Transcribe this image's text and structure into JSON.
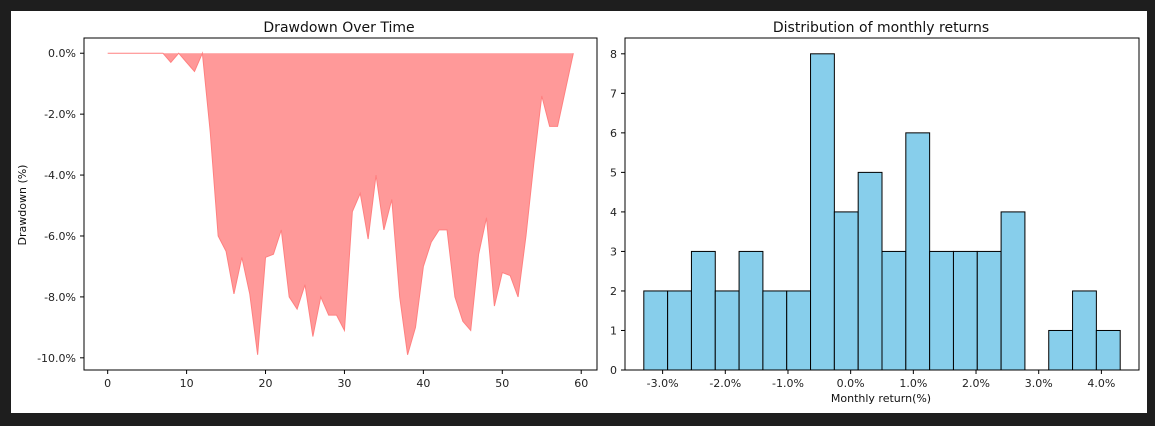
{
  "chart_data": [
    {
      "type": "area",
      "title": "Drawdown Over Time",
      "xlabel": "",
      "ylabel": "Drawdown (%)",
      "xlim": [
        -3,
        62
      ],
      "ylim": [
        -10.4,
        0.5
      ],
      "xticks": [
        0,
        10,
        20,
        30,
        40,
        50,
        60
      ],
      "xtick_labels": [
        "0",
        "10",
        "20",
        "30",
        "40",
        "50",
        "60"
      ],
      "yticks": [
        0,
        -2,
        -4,
        -6,
        -8,
        -10
      ],
      "ytick_labels": [
        "0.0%",
        "-2.0%",
        "-4.0%",
        "-6.0%",
        "-8.0%",
        "-10.0%"
      ],
      "fill_color": "#ff9999",
      "edge_color": "#ff8080",
      "x": [
        0,
        1,
        2,
        3,
        4,
        5,
        6,
        7,
        8,
        9,
        10,
        11,
        12,
        13,
        14,
        15,
        16,
        17,
        18,
        19,
        20,
        21,
        22,
        23,
        24,
        25,
        26,
        27,
        28,
        29,
        30,
        31,
        32,
        33,
        34,
        35,
        36,
        37,
        38,
        39,
        40,
        41,
        42,
        43,
        44,
        45,
        46,
        47,
        48,
        49,
        50,
        51,
        52,
        53,
        54,
        55,
        56,
        57,
        58,
        59
      ],
      "y": [
        0,
        0,
        0,
        0,
        0,
        0,
        0,
        0,
        -0.3,
        0,
        -0.3,
        -0.6,
        0,
        -2.6,
        -6.0,
        -6.5,
        -7.9,
        -6.7,
        -7.9,
        -9.9,
        -6.7,
        -6.6,
        -5.8,
        -8.0,
        -8.4,
        -7.6,
        -9.3,
        -8.0,
        -8.6,
        -8.6,
        -9.1,
        -5.2,
        -4.6,
        -6.1,
        -4.0,
        -5.8,
        -4.8,
        -8.0,
        -9.9,
        -9.0,
        -7.0,
        -6.2,
        -5.8,
        -5.8,
        -8.0,
        -8.8,
        -9.1,
        -6.6,
        -5.4,
        -8.3,
        -7.2,
        -7.3,
        -8.0,
        -6.0,
        -3.6,
        -1.4,
        -2.4,
        -2.4,
        -1.2,
        0
      ]
    },
    {
      "type": "bar",
      "title": "Distribution of monthly returns",
      "xlabel": "Monthly return(%)",
      "ylabel": "",
      "xlim": [
        -3.6,
        4.6
      ],
      "ylim": [
        0,
        8.4
      ],
      "xticks": [
        -3,
        -2,
        -1,
        0,
        1,
        2,
        3,
        4
      ],
      "xtick_labels": [
        "-3.0%",
        "-2.0%",
        "-1.0%",
        "0.0%",
        "1.0%",
        "2.0%",
        "3.0%",
        "4.0%"
      ],
      "yticks": [
        0,
        1,
        2,
        3,
        4,
        5,
        6,
        7,
        8
      ],
      "ytick_labels": [
        "0",
        "1",
        "2",
        "3",
        "4",
        "5",
        "6",
        "7",
        "8"
      ],
      "bar_color": "#87ceeb",
      "edge_color": "#000000",
      "bin_start": -3.3,
      "bin_width": 0.38,
      "values": [
        2,
        2,
        3,
        2,
        3,
        2,
        2,
        8,
        4,
        5,
        3,
        6,
        3,
        3,
        3,
        4,
        0,
        1,
        2,
        1
      ]
    }
  ]
}
